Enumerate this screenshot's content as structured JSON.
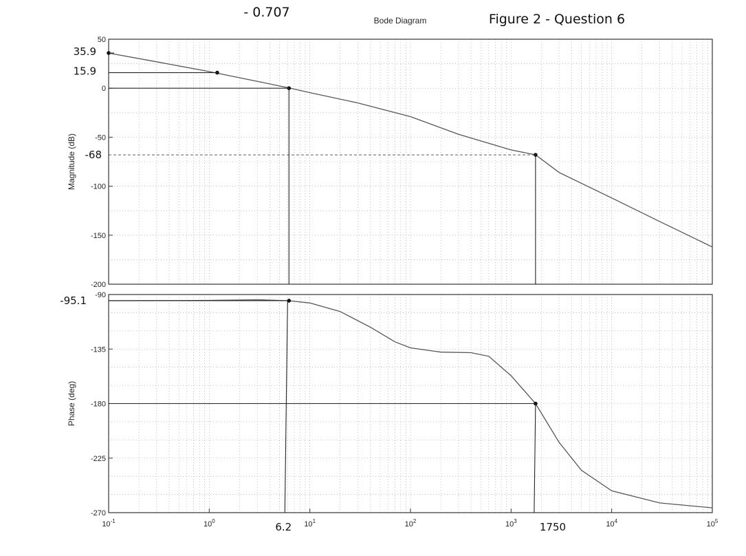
{
  "title": "Bode Diagram",
  "annotations": {
    "top_note": "- 0.707",
    "figure_label": "Figure 2 - Question 6"
  },
  "chart_data": [
    {
      "type": "line",
      "panel": "magnitude",
      "ylabel": "Magnitude (dB)",
      "xscale": "log",
      "xlim": [
        0.1,
        100000
      ],
      "ylim": [
        -200,
        50
      ],
      "yticks": [
        50,
        0,
        -50,
        -100,
        -150,
        -200
      ],
      "grid": true,
      "series": [
        {
          "x": [
            0.1,
            0.3,
            1,
            3,
            6.2,
            10,
            30,
            100,
            300,
            1000,
            1750,
            3000,
            10000,
            30000,
            100000
          ],
          "y": [
            35.9,
            27,
            17,
            7,
            0.3,
            -4.5,
            -15,
            -29,
            -47,
            -63,
            -68,
            -86,
            -112,
            -136,
            -162
          ]
        }
      ],
      "marked_points": [
        {
          "x": 0.1,
          "y": 35.9,
          "label": "35.9"
        },
        {
          "x": 1.2,
          "y": 15.9,
          "label": "15.9"
        },
        {
          "x": 6.2,
          "y": 0
        },
        {
          "x": 1750,
          "y": -68,
          "label": "-68"
        }
      ],
      "tick_labels": {
        "35.9": "35.9",
        "15.9": "15.9",
        "-68": "-68"
      }
    },
    {
      "type": "line",
      "panel": "phase",
      "ylabel": "Phase (deg)",
      "xlabel": "",
      "xscale": "log",
      "xlim": [
        0.1,
        100000
      ],
      "ylim": [
        -270,
        -90
      ],
      "yticks": [
        -90,
        -135,
        -180,
        -225,
        -270
      ],
      "xticks": [
        {
          "value": 0.1,
          "label": "10-1"
        },
        {
          "value": 1,
          "label": "100"
        },
        {
          "value": 10,
          "label": "101"
        },
        {
          "value": 100,
          "label": "102"
        },
        {
          "value": 1000,
          "label": "103"
        },
        {
          "value": 10000,
          "label": "104"
        },
        {
          "value": 100000,
          "label": "105"
        }
      ],
      "grid": true,
      "series": [
        {
          "x": [
            0.1,
            0.5,
            1,
            3,
            6.2,
            10,
            20,
            40,
            70,
            100,
            200,
            400,
            600,
            1000,
            1750,
            3000,
            5000,
            10000,
            30000,
            100000
          ],
          "y": [
            -95.1,
            -95,
            -94.8,
            -94.3,
            -95.1,
            -97,
            -104,
            -117,
            -129,
            -134,
            -137.5,
            -138,
            -141,
            -157,
            -180,
            -212,
            -235,
            -252,
            -262,
            -266
          ]
        }
      ],
      "marked_points": [
        {
          "x": 6.2,
          "y": -95.1,
          "label": "-95.1"
        },
        {
          "x": 1750,
          "y": -180
        }
      ],
      "x_annotations": [
        {
          "value": 6.2,
          "label": "6.2"
        },
        {
          "value": 1750,
          "label": "1750"
        }
      ],
      "tick_labels": {
        "-95.1": "-95.1"
      }
    }
  ]
}
